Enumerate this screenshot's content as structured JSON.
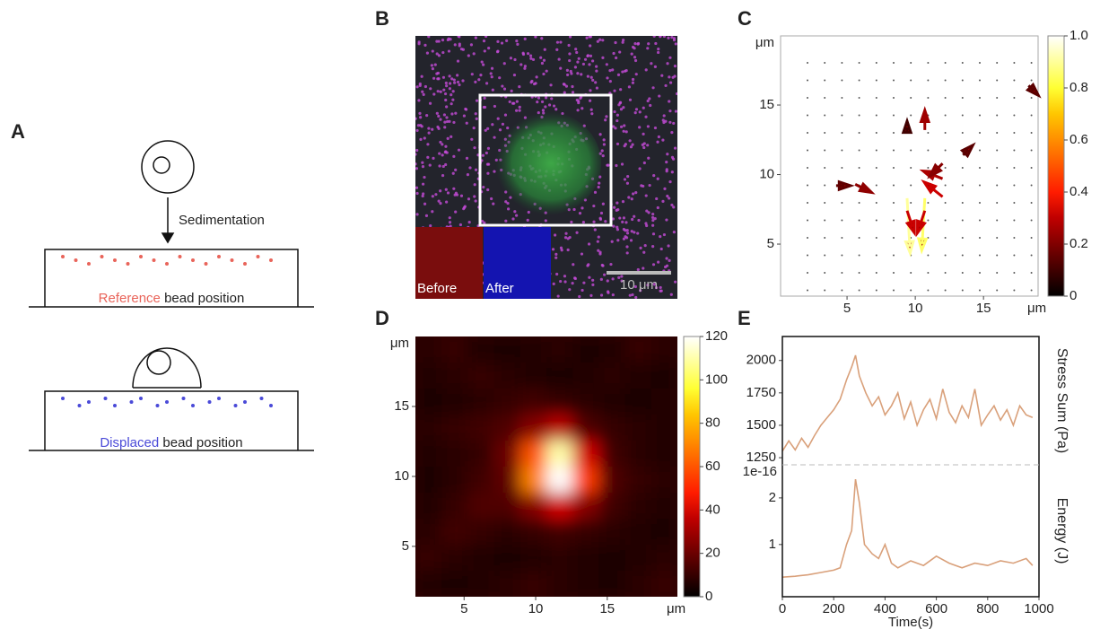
{
  "panel_labels": [
    "A",
    "B",
    "C",
    "D",
    "E"
  ],
  "diagram": {
    "arrow_label": "Sedimentation",
    "reference_word": "Reference",
    "reference_rest": "bead position",
    "displaced_word": "Displaced",
    "displaced_rest": "bead position"
  },
  "micrograph": {
    "before_label": "Before",
    "after_label": "After",
    "scale_label": "10 μm"
  },
  "chart_data": [
    {
      "type": "quiver",
      "x": [
        9.4,
        10.7,
        9.4,
        10.7,
        10.7,
        12,
        12,
        12,
        5.6,
        4.2,
        9.4,
        13.5,
        18.3
      ],
      "y": [
        8.3,
        8.3,
        7.4,
        7.4,
        13.2,
        9.7,
        8.4,
        10.8,
        9.3,
        9.2,
        13,
        11.4,
        16.4
      ],
      "u": [
        0.05,
        -0.05,
        0.1,
        -0.1,
        0,
        -0.25,
        -0.25,
        -0.15,
        0.2,
        0.15,
        0,
        0.1,
        0.1
      ],
      "v": [
        -0.9,
        -0.85,
        -0.3,
        -0.3,
        0.25,
        0.1,
        0.2,
        -0.15,
        -0.1,
        0,
        0.1,
        0.1,
        -0.1
      ],
      "xlim": [
        0.13,
        19
      ],
      "ylim": [
        1.26,
        19.97
      ],
      "xticks": [
        5,
        10,
        15
      ],
      "yticks": [
        5,
        10,
        15
      ],
      "xunit": "μm",
      "yunit": "μm",
      "colormap": "hot",
      "clim": [
        0,
        1
      ],
      "cticks": [
        0,
        0.2,
        0.4,
        0.6,
        0.8,
        {
          "value": 1,
          "label": "1.0"
        }
      ]
    },
    {
      "type": "heatmap",
      "z": [
        [
          8,
          10,
          6,
          5,
          6,
          8,
          5,
          6,
          10,
          8
        ],
        [
          6,
          8,
          10,
          8,
          6,
          5,
          6,
          8,
          6,
          5
        ],
        [
          5,
          6,
          8,
          10,
          12,
          10,
          8,
          6,
          5,
          6
        ],
        [
          8,
          10,
          12,
          15,
          25,
          35,
          15,
          10,
          8,
          6
        ],
        [
          6,
          8,
          10,
          20,
          60,
          110,
          40,
          12,
          8,
          6
        ],
        [
          5,
          8,
          12,
          18,
          70,
          120,
          55,
          15,
          10,
          8
        ],
        [
          6,
          10,
          15,
          15,
          25,
          40,
          25,
          12,
          8,
          6
        ],
        [
          8,
          12,
          10,
          8,
          10,
          12,
          10,
          8,
          6,
          5
        ],
        [
          10,
          8,
          6,
          5,
          6,
          8,
          6,
          5,
          6,
          8
        ],
        [
          6,
          5,
          6,
          8,
          10,
          8,
          6,
          5,
          8,
          10
        ]
      ],
      "xlim": [
        1.6,
        19.9
      ],
      "ylim": [
        1.4,
        20
      ],
      "xticks": [
        5,
        10,
        15
      ],
      "yticks": [
        5,
        10,
        15
      ],
      "xunit": "μm",
      "yunit": "μm",
      "colormap": "hot",
      "clim": [
        0,
        120
      ],
      "cticks": [
        0,
        20,
        40,
        60,
        80,
        100,
        120
      ]
    },
    {
      "type": "line",
      "ylabel": "Stress Sum (Pa)",
      "color": "#d9a07a",
      "x": [
        0,
        25,
        50,
        75,
        100,
        125,
        150,
        175,
        200,
        225,
        250,
        270,
        285,
        300,
        325,
        350,
        375,
        400,
        425,
        450,
        475,
        500,
        525,
        550,
        575,
        600,
        625,
        650,
        675,
        700,
        725,
        750,
        775,
        800,
        825,
        850,
        875,
        900,
        925,
        950,
        975
      ],
      "values": [
        1300,
        1380,
        1310,
        1400,
        1330,
        1420,
        1500,
        1560,
        1620,
        1700,
        1850,
        1950,
        2040,
        1880,
        1750,
        1650,
        1720,
        1580,
        1650,
        1750,
        1550,
        1680,
        1500,
        1620,
        1700,
        1550,
        1780,
        1600,
        1520,
        1650,
        1560,
        1780,
        1500,
        1580,
        1650,
        1540,
        1620,
        1500,
        1650,
        1580,
        1560
      ],
      "xlim": [
        0,
        1000
      ],
      "ylim": [
        1195,
        2185
      ],
      "yticks": [
        1250,
        1500,
        1750,
        2000
      ]
    },
    {
      "type": "line",
      "ylabel": "Energy (J)",
      "xlabel": "Time(s)",
      "offset_label": "1e-16",
      "color": "#d9a07a",
      "x": [
        0,
        50,
        100,
        150,
        200,
        225,
        250,
        270,
        285,
        300,
        320,
        350,
        375,
        400,
        425,
        450,
        500,
        550,
        600,
        650,
        700,
        750,
        800,
        850,
        900,
        950,
        975
      ],
      "values": [
        0.3,
        0.32,
        0.35,
        0.4,
        0.45,
        0.5,
        1.0,
        1.3,
        2.4,
        1.9,
        1.0,
        0.8,
        0.7,
        1.0,
        0.6,
        0.5,
        0.65,
        0.55,
        0.75,
        0.6,
        0.5,
        0.6,
        0.55,
        0.65,
        0.6,
        0.7,
        0.55
      ],
      "xlim": [
        0,
        1000
      ],
      "ylim": [
        -0.12,
        2.71
      ],
      "xticks": [
        0,
        200,
        400,
        600,
        800,
        1000
      ],
      "yticks": [
        1,
        2
      ]
    }
  ]
}
